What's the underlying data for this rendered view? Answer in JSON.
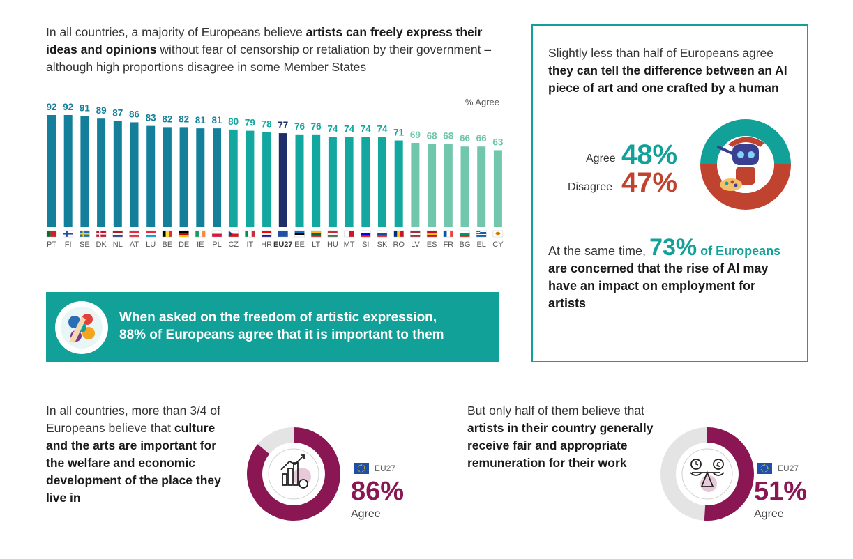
{
  "intro": {
    "t1": "In all countries, a majority of Europeans believe ",
    "b1": "artists can freely express their ideas and opinions",
    "t2": " without fear of censorship or retaliation by their government – although high proportions disagree in some Member States"
  },
  "chart_data": {
    "type": "bar",
    "unit_label": "% Agree",
    "categories": [
      "PT",
      "FI",
      "SE",
      "DK",
      "NL",
      "AT",
      "LU",
      "BE",
      "DE",
      "IE",
      "PL",
      "CZ",
      "IT",
      "HR",
      "EU27",
      "EE",
      "LT",
      "HU",
      "MT",
      "SI",
      "SK",
      "RO",
      "LV",
      "ES",
      "FR",
      "BG",
      "EL",
      "CY"
    ],
    "values": [
      92,
      92,
      91,
      89,
      87,
      86,
      83,
      82,
      82,
      81,
      81,
      80,
      79,
      78,
      77,
      76,
      76,
      74,
      74,
      74,
      74,
      71,
      69,
      68,
      68,
      66,
      66,
      63
    ],
    "ylim": [
      0,
      92
    ],
    "grid": false,
    "colors": {
      "high": "#137f9b",
      "mid": "#12a8a0",
      "low": "#70c7ac",
      "eu": "#1f2d6b"
    }
  },
  "banner": {
    "line1": "When asked on the freedom of artistic expression,",
    "line2": "88% of Europeans agree that it is important to them"
  },
  "ai_box": {
    "intro_t1": "Slightly less than half of Europeans agree ",
    "intro_b1": "they can tell the difference between an AI piece of art and one crafted by a human",
    "agree_label": "Agree",
    "agree_value": "48%",
    "disagree_label": "Disagree",
    "disagree_value": "47%",
    "bottom_t1": "At the same time, ",
    "bottom_big": "73%",
    "bottom_of": " of",
    "bottom_teal": "Europeans",
    "bottom_b1": " are concerned that the rise of AI may have an impact on employment for artists"
  },
  "culture": {
    "t1": "In all countries, more than 3/4 of Europeans believe that ",
    "b1": "culture and the arts are important for the welfare and economic development of the place they live in",
    "eu_label": "EU27",
    "value": "86%",
    "value_num": 86,
    "agree_label": "Agree"
  },
  "remuneration": {
    "t1": "But only half of them believe that ",
    "b1": "artists in their country generally receive fair and appropriate remuneration for their work",
    "eu_label": "EU27",
    "value": "51%",
    "value_num": 51,
    "agree_label": "Agree"
  },
  "colors": {
    "teal": "#12a198",
    "red": "#c0432f",
    "purple": "#8a1754",
    "navy": "#1f2d6b"
  }
}
